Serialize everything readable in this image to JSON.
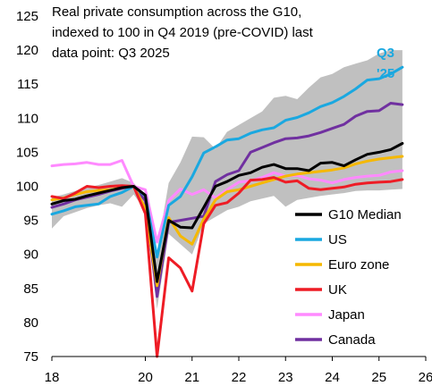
{
  "chart_data": {
    "type": "line",
    "title_lines": [
      "Real private consumption across the G10,",
      "indexed to 100 in Q4 2019 (pre-COVID) last",
      "data point: Q3 2025"
    ],
    "xlabel": "",
    "ylabel": "",
    "x_ticks": [
      {
        "value": 2018,
        "label": "18"
      },
      {
        "value": 2020,
        "label": "20"
      },
      {
        "value": 2021,
        "label": "21"
      },
      {
        "value": 2022,
        "label": "22"
      },
      {
        "value": 2023,
        "label": "23"
      },
      {
        "value": 2024,
        "label": "24"
      },
      {
        "value": 2025,
        "label": "25"
      },
      {
        "value": 2026,
        "label": "26"
      }
    ],
    "y_ticks": [
      75,
      80,
      85,
      90,
      95,
      100,
      105,
      110,
      115,
      120,
      125
    ],
    "xlim": [
      2018,
      2026
    ],
    "ylim": [
      75,
      125
    ],
    "grid": false,
    "legend_position": "right",
    "annotation": {
      "lines": [
        "Q3",
        "'25"
      ],
      "color": "#1aa8e0"
    },
    "x": [
      2018.0,
      2018.25,
      2018.5,
      2018.75,
      2019.0,
      2019.25,
      2019.5,
      2019.75,
      2020.0,
      2020.25,
      2020.5,
      2020.75,
      2021.0,
      2021.25,
      2021.5,
      2021.75,
      2022.0,
      2022.25,
      2022.5,
      2022.75,
      2023.0,
      2023.25,
      2023.5,
      2023.75,
      2024.0,
      2024.25,
      2024.5,
      2024.75,
      2025.0,
      2025.25,
      2025.5
    ],
    "band": {
      "color": "#c0c0c0",
      "lower": [
        93.8,
        95.6,
        96.2,
        96.8,
        97.2,
        97.5,
        97.0,
        98.8,
        96.5,
        82.0,
        93.0,
        91.5,
        90.0,
        94.5,
        95.5,
        96.5,
        97.0,
        97.8,
        98.2,
        98.6,
        97.0,
        98.0,
        98.3,
        98.6,
        98.8,
        99.0,
        99.3,
        99.4,
        99.4,
        99.5,
        99.6
      ],
      "upper": [
        98.4,
        98.8,
        99.3,
        99.8,
        100.2,
        100.7,
        101.2,
        100.5,
        98.8,
        90.5,
        100.5,
        103.5,
        107.3,
        107.2,
        105.5,
        108.0,
        109.0,
        110.0,
        111.0,
        113.0,
        113.3,
        112.8,
        114.5,
        116.0,
        116.5,
        117.5,
        118.0,
        118.5,
        119.5,
        120.0,
        120.0
      ]
    },
    "series": [
      {
        "name": "G10 Median",
        "color": "#000000",
        "values": [
          97.4,
          97.9,
          98.1,
          98.6,
          99.0,
          99.4,
          99.8,
          100.0,
          98.7,
          86.0,
          95.0,
          94.0,
          93.9,
          96.9,
          100.0,
          100.7,
          101.6,
          102.0,
          102.8,
          103.2,
          102.6,
          102.6,
          102.3,
          103.4,
          103.5,
          103.0,
          103.9,
          104.7,
          105.0,
          105.4,
          106.3
        ]
      },
      {
        "name": "US",
        "color": "#1aa8e0",
        "values": [
          95.9,
          96.4,
          97.0,
          97.2,
          97.4,
          98.5,
          99.1,
          100.0,
          98.6,
          89.6,
          97.2,
          98.5,
          101.4,
          104.9,
          105.8,
          106.8,
          107.0,
          107.8,
          108.3,
          108.6,
          109.7,
          110.1,
          110.8,
          111.7,
          112.3,
          113.2,
          114.3,
          115.6,
          115.8,
          116.5,
          117.5
        ]
      },
      {
        "name": "Euro zone",
        "color": "#f5b800",
        "values": [
          98.0,
          98.3,
          98.8,
          99.2,
          99.4,
          99.5,
          99.8,
          100.0,
          96.8,
          85.4,
          95.4,
          92.7,
          91.5,
          95.2,
          98.0,
          99.2,
          99.5,
          100.0,
          100.5,
          101.0,
          101.5,
          101.8,
          102.0,
          102.2,
          102.4,
          102.7,
          103.3,
          103.7,
          104.0,
          104.2,
          104.4
        ]
      },
      {
        "name": "UK",
        "color": "#ee1c25",
        "values": [
          98.5,
          98.2,
          99.0,
          100.0,
          99.8,
          100.0,
          100.1,
          100.0,
          96.0,
          75.0,
          89.5,
          88.0,
          84.6,
          94.5,
          97.2,
          97.6,
          99.0,
          100.9,
          101.0,
          101.3,
          100.6,
          100.8,
          99.7,
          99.5,
          99.7,
          99.9,
          100.3,
          100.5,
          100.6,
          100.7,
          101.0
        ]
      },
      {
        "name": "Japan",
        "color": "#ff8aff",
        "values": [
          103.0,
          103.2,
          103.3,
          103.5,
          103.2,
          103.2,
          103.8,
          100.0,
          99.5,
          91.8,
          97.9,
          99.6,
          98.8,
          99.5,
          98.3,
          99.5,
          100.6,
          100.8,
          101.3,
          102.0,
          101.5,
          101.6,
          101.1,
          100.9,
          100.5,
          101.0,
          101.3,
          101.5,
          101.6,
          102.1,
          102.3
        ]
      },
      {
        "name": "Canada",
        "color": "#7030a0",
        "values": [
          96.9,
          97.4,
          98.0,
          98.4,
          98.8,
          99.3,
          99.7,
          100.0,
          97.9,
          83.8,
          94.7,
          95.0,
          95.3,
          95.6,
          100.7,
          101.7,
          102.3,
          105.0,
          105.7,
          106.4,
          107.0,
          107.1,
          107.4,
          107.9,
          108.5,
          109.1,
          110.3,
          111.0,
          111.1,
          112.2,
          112.0
        ]
      }
    ]
  }
}
